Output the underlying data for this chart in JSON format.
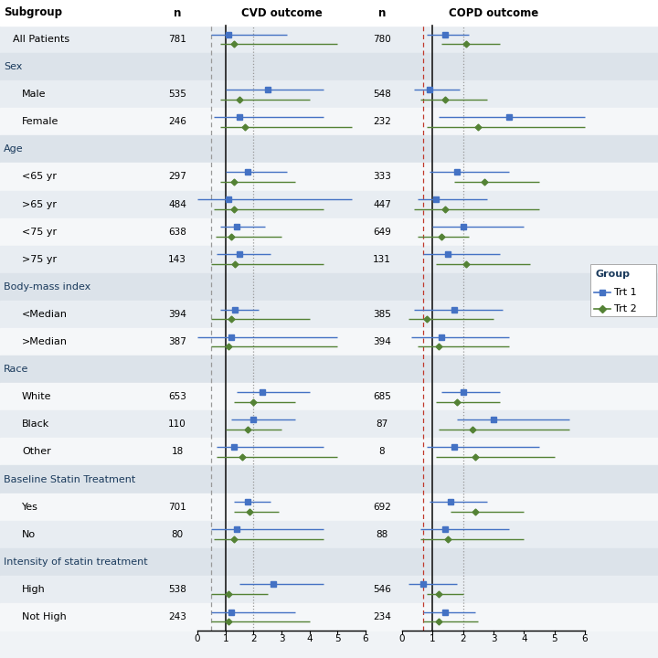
{
  "subgroups": [
    {
      "label": "All Patients",
      "header": false,
      "indent": 1,
      "cvd_n": 781,
      "copd_n": 780
    },
    {
      "label": "Sex",
      "header": true,
      "indent": 0
    },
    {
      "label": "Male",
      "header": false,
      "indent": 2,
      "cvd_n": 535,
      "copd_n": 548
    },
    {
      "label": "Female",
      "header": false,
      "indent": 2,
      "cvd_n": 246,
      "copd_n": 232
    },
    {
      "label": "Age",
      "header": true,
      "indent": 0
    },
    {
      "label": "<65 yr",
      "header": false,
      "indent": 2,
      "cvd_n": 297,
      "copd_n": 333
    },
    {
      "label": ">65 yr",
      "header": false,
      "indent": 2,
      "cvd_n": 484,
      "copd_n": 447
    },
    {
      "label": "<75 yr",
      "header": false,
      "indent": 2,
      "cvd_n": 638,
      "copd_n": 649
    },
    {
      "label": ">75 yr",
      "header": false,
      "indent": 2,
      "cvd_n": 143,
      "copd_n": 131
    },
    {
      "label": "Body-mass index",
      "header": true,
      "indent": 0
    },
    {
      "label": "<Median",
      "header": false,
      "indent": 2,
      "cvd_n": 394,
      "copd_n": 385
    },
    {
      "label": ">Median",
      "header": false,
      "indent": 2,
      "cvd_n": 387,
      "copd_n": 394
    },
    {
      "label": "Race",
      "header": true,
      "indent": 0
    },
    {
      "label": "White",
      "header": false,
      "indent": 2,
      "cvd_n": 653,
      "copd_n": 685
    },
    {
      "label": "Black",
      "header": false,
      "indent": 2,
      "cvd_n": 110,
      "copd_n": 87
    },
    {
      "label": "Other",
      "header": false,
      "indent": 2,
      "cvd_n": 18,
      "copd_n": 8
    },
    {
      "label": "Baseline Statin Treatment",
      "header": true,
      "indent": 0
    },
    {
      "label": "Yes",
      "header": false,
      "indent": 2,
      "cvd_n": 701,
      "copd_n": 692
    },
    {
      "label": "No",
      "header": false,
      "indent": 2,
      "cvd_n": 80,
      "copd_n": 88
    },
    {
      "label": "Intensity of statin treatment",
      "header": true,
      "indent": 0
    },
    {
      "label": "High",
      "header": false,
      "indent": 2,
      "cvd_n": 538,
      "copd_n": 546
    },
    {
      "label": "Not High",
      "header": false,
      "indent": 2,
      "cvd_n": 243,
      "copd_n": 234
    }
  ],
  "cvd_trt1": [
    1.1,
    null,
    2.5,
    1.5,
    null,
    1.8,
    1.1,
    1.4,
    1.5,
    null,
    1.35,
    1.2,
    null,
    2.3,
    2.0,
    1.3,
    null,
    1.8,
    1.4,
    null,
    2.7,
    1.2
  ],
  "cvd_trt1_lo": [
    0.5,
    null,
    1.0,
    0.6,
    null,
    1.0,
    0.0,
    0.8,
    0.7,
    null,
    0.8,
    0.0,
    null,
    1.4,
    1.2,
    0.7,
    null,
    1.3,
    0.5,
    null,
    1.5,
    0.5
  ],
  "cvd_trt1_hi": [
    3.2,
    null,
    4.5,
    4.5,
    null,
    3.2,
    5.5,
    2.4,
    2.6,
    null,
    2.2,
    5.0,
    null,
    4.0,
    3.5,
    4.5,
    null,
    2.6,
    4.5,
    null,
    4.5,
    3.5
  ],
  "cvd_trt2": [
    1.3,
    null,
    1.5,
    1.7,
    null,
    1.3,
    1.3,
    1.2,
    1.35,
    null,
    1.2,
    1.1,
    null,
    2.0,
    1.8,
    1.6,
    null,
    1.85,
    1.3,
    null,
    1.1,
    1.1
  ],
  "cvd_trt2_lo": [
    0.8,
    null,
    0.8,
    0.8,
    null,
    0.8,
    0.6,
    0.65,
    0.5,
    null,
    0.5,
    0.5,
    null,
    1.3,
    1.0,
    0.7,
    null,
    1.3,
    0.6,
    null,
    0.5,
    0.5
  ],
  "cvd_trt2_hi": [
    5.0,
    null,
    4.0,
    5.5,
    null,
    3.5,
    4.5,
    3.0,
    4.5,
    null,
    4.0,
    5.0,
    null,
    3.5,
    3.0,
    5.0,
    null,
    2.9,
    4.5,
    null,
    2.5,
    4.0
  ],
  "copd_trt1": [
    1.4,
    null,
    0.9,
    3.5,
    null,
    1.8,
    1.1,
    2.0,
    1.5,
    null,
    1.7,
    1.3,
    null,
    2.0,
    3.0,
    1.7,
    null,
    1.6,
    1.4,
    null,
    0.7,
    1.4
  ],
  "copd_trt1_lo": [
    0.8,
    null,
    0.4,
    1.2,
    null,
    0.9,
    0.5,
    1.0,
    0.7,
    null,
    0.4,
    0.3,
    null,
    1.3,
    1.8,
    0.8,
    null,
    0.9,
    0.6,
    null,
    0.2,
    0.7
  ],
  "copd_trt1_hi": [
    2.2,
    null,
    1.9,
    6.0,
    null,
    3.5,
    2.8,
    4.0,
    3.2,
    null,
    3.3,
    3.5,
    null,
    3.2,
    5.5,
    4.5,
    null,
    2.8,
    3.5,
    null,
    1.8,
    2.4
  ],
  "copd_trt2": [
    2.1,
    null,
    1.4,
    2.5,
    null,
    2.7,
    1.4,
    1.3,
    2.1,
    null,
    0.8,
    1.2,
    null,
    1.8,
    2.3,
    2.4,
    null,
    2.4,
    1.5,
    null,
    1.2,
    1.2
  ],
  "copd_trt2_lo": [
    1.3,
    null,
    0.6,
    0.8,
    null,
    1.7,
    0.4,
    0.5,
    1.1,
    null,
    0.2,
    0.5,
    null,
    1.1,
    1.2,
    1.1,
    null,
    1.6,
    0.6,
    null,
    0.8,
    0.7
  ],
  "copd_trt2_hi": [
    3.2,
    null,
    2.8,
    6.0,
    null,
    4.5,
    4.5,
    2.2,
    4.2,
    null,
    3.0,
    3.5,
    null,
    3.2,
    5.5,
    5.0,
    null,
    4.0,
    4.0,
    null,
    2.0,
    2.5
  ],
  "trt1_color": "#4472c4",
  "trt2_color": "#548235",
  "vline_color": "#1a1a1a",
  "gray_dashed_color": "#999999",
  "red_dashed_color": "#c0392b",
  "row_alt_color": "#e8edf2",
  "row_white_color": "#f5f7f9",
  "header_bg_color": "#dce3ea",
  "bg_color": "#f0f3f6"
}
